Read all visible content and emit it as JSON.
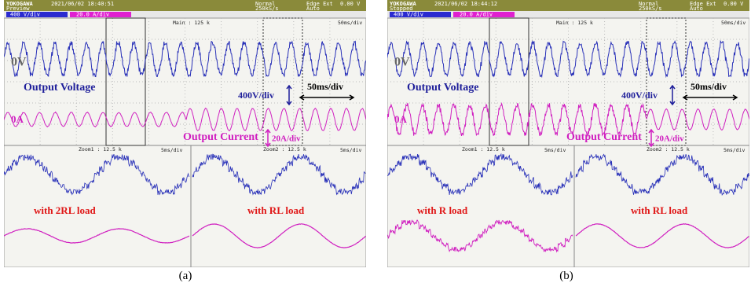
{
  "panels": [
    {
      "header": {
        "brand": "YOKOGAWA",
        "timestamp": "2021/06/02 18:40:51",
        "status": "Preview",
        "mode": "Normal",
        "sample_rate": "250kS/s",
        "trigger": "Edge Ext",
        "trigger_level": "0.00 V",
        "trigger_mode": "Auto"
      },
      "channels": {
        "ch1": "400 V/div",
        "ch2": "20.0 A/div"
      },
      "main": {
        "label": "Main : 125 k",
        "timebase": "50ms/div",
        "zero_v": "0V",
        "zero_a": "0A",
        "voltage_label": "Output Voltage",
        "voltage_scale": "400V/div",
        "time_scale": "50ms/div",
        "current_label": "Output Current",
        "current_scale": "20A/div"
      },
      "zoom1": {
        "label": "Zoom1 : 12.5 k",
        "timebase": "5ms/div",
        "load": "with 2RL load"
      },
      "zoom2": {
        "label": "Zoom2 : 12.5 k",
        "timebase": "5ms/div",
        "load": "with RL load"
      },
      "caption": "(a)"
    },
    {
      "header": {
        "brand": "YOKOGAWA",
        "timestamp": "2021/06/02 18:44:12",
        "status": "Stopped",
        "mode": "Normal",
        "sample_rate": "250kS/s",
        "trigger": "Edge Ext",
        "trigger_level": "0.00 V",
        "trigger_mode": "Auto"
      },
      "channels": {
        "ch1": "400 V/div",
        "ch2": "20.0 A/div"
      },
      "main": {
        "label": "Main : 125 k",
        "timebase": "50ms/div",
        "zero_v": "0V",
        "zero_a": "0A",
        "voltage_label": "Output Voltage",
        "voltage_scale": "400V/div",
        "time_scale": "50ms/div",
        "current_label": "Output Current",
        "current_scale": "20A/div"
      },
      "zoom1": {
        "label": "Zoom1 : 12.5 k",
        "timebase": "5ms/div",
        "load": "with R load"
      },
      "zoom2": {
        "label": "Zoom2 : 12.5 k",
        "timebase": "5ms/div",
        "load": "with RL load"
      },
      "caption": "(b)"
    }
  ]
}
